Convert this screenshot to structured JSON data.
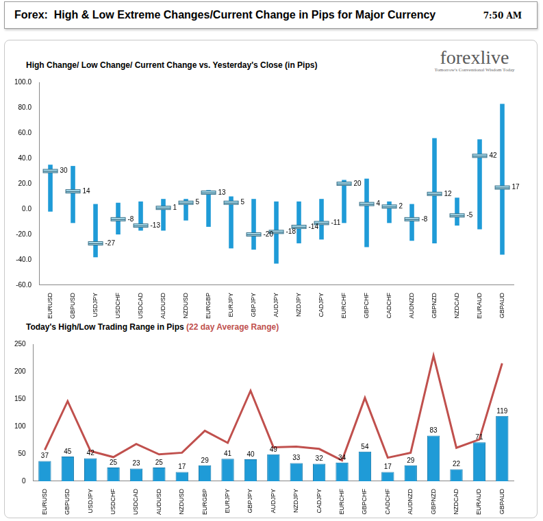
{
  "header": {
    "title": "Forex:  High & Low Extreme Changes/Current Change in Pips for Major Currency",
    "time": "7:50 AM"
  },
  "logo": {
    "name": "forexlive",
    "tagline": "Tomorrow's Conventional Wisdom Today"
  },
  "chart_data": [
    {
      "type": "bar",
      "title": "High Change/ Low Change/ Current Change vs. Yesterday's Close (in Pips)",
      "categories": [
        "EURUSD",
        "GBPUSD",
        "USDJPY",
        "USDCHF",
        "USDCAD",
        "AUDUSD",
        "NZDUSD",
        "EURGBP",
        "EURJPY",
        "GBPJPY",
        "AUDJPY",
        "NZDJPY",
        "CADJPY",
        "EURCHF",
        "GBPCHF",
        "CADCHF",
        "AUDNZD",
        "GBPNZD",
        "NZDCAD",
        "EURAUD",
        "GBPAUD"
      ],
      "series": [
        {
          "type": "bar",
          "color": "#1f9bd7",
          "low": [
            -2,
            -11,
            -38,
            -20,
            -17,
            -17,
            -9,
            -14,
            -31,
            -32,
            -43,
            -27,
            -24,
            -11,
            -30,
            -11,
            -25,
            -27,
            -13,
            -16,
            -36
          ],
          "high": [
            35,
            34,
            4,
            5,
            6,
            8,
            8,
            15,
            10,
            8,
            6,
            6,
            8,
            23,
            24,
            6,
            4,
            56,
            9,
            55,
            83
          ]
        },
        {
          "type": "scatter",
          "marker": "dash",
          "color": "#a8dced",
          "data_labels": true,
          "values": [
            30,
            14,
            -27,
            -8,
            -13,
            1,
            5,
            13,
            5,
            -20,
            -18,
            -14,
            -11,
            20,
            4,
            2,
            -8,
            12,
            -5,
            42,
            17
          ]
        }
      ],
      "ylim": [
        -60,
        100
      ],
      "yticks": [
        {
          "value": -60,
          "label": "-60.0"
        },
        {
          "value": -40,
          "label": "-40.0"
        },
        {
          "value": -20,
          "label": "-20.0"
        },
        {
          "value": 0,
          "label": "0.0"
        },
        {
          "value": 20,
          "label": "20.0"
        },
        {
          "value": 40,
          "label": "40.0"
        },
        {
          "value": 60,
          "label": "60.0"
        },
        {
          "value": 80,
          "label": "80.0"
        },
        {
          "value": 100,
          "label": "100.0"
        }
      ],
      "grid": false,
      "legend": false
    },
    {
      "type": "bar",
      "title": "Today's High/Low Trading Range in Pips",
      "categories": [
        "EURUSD",
        "GBPUSD",
        "USDJPY",
        "USDCHF",
        "USDCAD",
        "AUDUSD",
        "NZDUSD",
        "EURGBP",
        "EURJPY",
        "GBPJPY",
        "AUDJPY",
        "NZDJPY",
        "CADJPY",
        "EURCHF",
        "GBPCHF",
        "CADCHF",
        "AUDNZD",
        "GBPNZD",
        "NZDCAD",
        "EURAUD",
        "GBPAUD"
      ],
      "series": [
        {
          "type": "bar",
          "color": "#1f9bd7",
          "data_labels": true,
          "values": [
            37,
            45,
            42,
            25,
            23,
            25,
            17,
            29,
            41,
            40,
            49,
            33,
            32,
            34,
            54,
            17,
            29,
            83,
            22,
            71,
            119
          ]
        },
        {
          "name": "(22 day Average Range)",
          "type": "line",
          "color": "#c0504d",
          "marker": "none",
          "values": [
            57,
            146,
            55,
            44,
            68,
            49,
            52,
            92,
            70,
            165,
            62,
            63,
            59,
            38,
            152,
            43,
            52,
            229,
            61,
            76,
            215
          ]
        }
      ],
      "ylim": [
        0,
        250
      ],
      "yticks": [
        0,
        50,
        100,
        150,
        200,
        250
      ],
      "grid": false,
      "legend": false
    }
  ]
}
